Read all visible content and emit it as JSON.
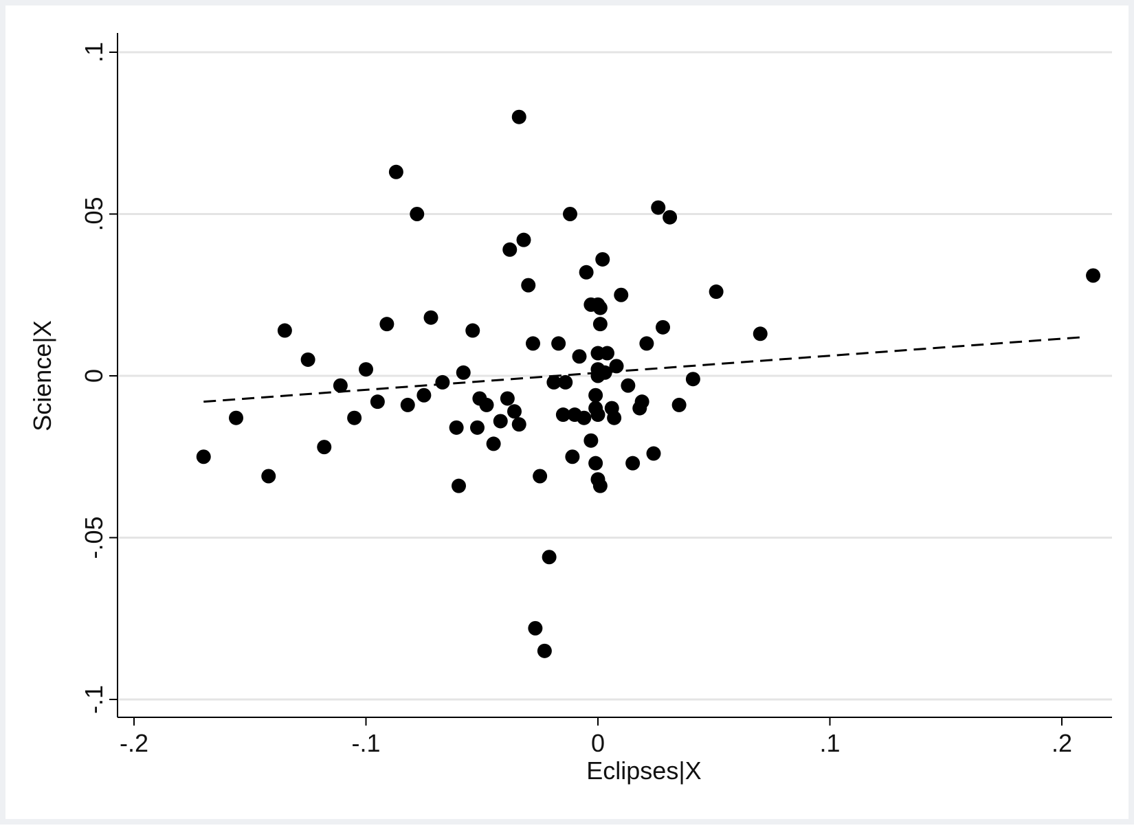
{
  "chart_data": {
    "type": "scatter",
    "title": "",
    "xlabel": "Eclipses|X",
    "ylabel": "Science|X",
    "xlim": [
      -0.208,
      0.22
    ],
    "ylim": [
      -0.105,
      0.105
    ],
    "xticks": [
      -0.2,
      -0.1,
      0,
      0.1,
      0.2
    ],
    "xtick_labels": [
      "-.2",
      "-.1",
      "0",
      ".1",
      ".2"
    ],
    "yticks": [
      -0.1,
      -0.05,
      0,
      0.05,
      0.1
    ],
    "ytick_labels": [
      "-.1",
      "-.05",
      "0",
      ".05",
      ".1"
    ],
    "grid": "horizontal",
    "legend": "none",
    "colors": {
      "points": "#000000",
      "fit_line": "#000000",
      "grid": "#e4e4e4",
      "axis": "#000000"
    },
    "points": [
      [
        -0.034,
        0.08
      ],
      [
        -0.087,
        0.063
      ],
      [
        -0.078,
        0.05
      ],
      [
        -0.012,
        0.05
      ],
      [
        0.026,
        0.052
      ],
      [
        0.031,
        0.049
      ],
      [
        -0.032,
        0.042
      ],
      [
        -0.038,
        0.039
      ],
      [
        0.002,
        0.036
      ],
      [
        -0.005,
        0.032
      ],
      [
        -0.03,
        0.028
      ],
      [
        0.051,
        0.026
      ],
      [
        0.01,
        0.025
      ],
      [
        0.2135,
        0.031
      ],
      [
        -0.003,
        0.022
      ],
      [
        0.0,
        0.022
      ],
      [
        0.001,
        0.021
      ],
      [
        -0.072,
        0.018
      ],
      [
        -0.091,
        0.016
      ],
      [
        0.001,
        0.016
      ],
      [
        -0.135,
        0.014
      ],
      [
        -0.054,
        0.014
      ],
      [
        0.028,
        0.015
      ],
      [
        0.07,
        0.013
      ],
      [
        -0.028,
        0.01
      ],
      [
        -0.017,
        0.01
      ],
      [
        0.021,
        0.01
      ],
      [
        -0.008,
        0.006
      ],
      [
        0.0,
        0.007
      ],
      [
        0.004,
        0.007
      ],
      [
        -0.125,
        0.005
      ],
      [
        0.008,
        0.003
      ],
      [
        -0.1,
        0.002
      ],
      [
        -0.058,
        0.001
      ],
      [
        0.0,
        0.002
      ],
      [
        0.003,
        0.001
      ],
      [
        0.0,
        0.0
      ],
      [
        0.041,
        -0.001
      ],
      [
        -0.111,
        -0.003
      ],
      [
        -0.067,
        -0.002
      ],
      [
        -0.019,
        -0.002
      ],
      [
        -0.014,
        -0.002
      ],
      [
        0.013,
        -0.003
      ],
      [
        -0.075,
        -0.006
      ],
      [
        -0.051,
        -0.007
      ],
      [
        -0.039,
        -0.007
      ],
      [
        -0.001,
        -0.006
      ],
      [
        0.019,
        -0.008
      ],
      [
        -0.095,
        -0.008
      ],
      [
        0.035,
        -0.009
      ],
      [
        -0.082,
        -0.009
      ],
      [
        -0.048,
        -0.009
      ],
      [
        -0.001,
        -0.01
      ],
      [
        0.006,
        -0.01
      ],
      [
        0.018,
        -0.01
      ],
      [
        -0.036,
        -0.011
      ],
      [
        -0.015,
        -0.012
      ],
      [
        -0.01,
        -0.012
      ],
      [
        0.0,
        -0.012
      ],
      [
        -0.006,
        -0.013
      ],
      [
        0.007,
        -0.013
      ],
      [
        -0.156,
        -0.013
      ],
      [
        -0.105,
        -0.013
      ],
      [
        -0.042,
        -0.014
      ],
      [
        -0.034,
        -0.015
      ],
      [
        -0.061,
        -0.016
      ],
      [
        -0.052,
        -0.016
      ],
      [
        -0.003,
        -0.02
      ],
      [
        -0.118,
        -0.022
      ],
      [
        -0.045,
        -0.021
      ],
      [
        0.024,
        -0.024
      ],
      [
        -0.17,
        -0.025
      ],
      [
        -0.011,
        -0.025
      ],
      [
        -0.001,
        -0.027
      ],
      [
        0.015,
        -0.027
      ],
      [
        -0.142,
        -0.031
      ],
      [
        -0.025,
        -0.031
      ],
      [
        0.0,
        -0.032
      ],
      [
        0.001,
        -0.034
      ],
      [
        -0.06,
        -0.034
      ],
      [
        -0.021,
        -0.056
      ],
      [
        -0.027,
        -0.078
      ],
      [
        -0.023,
        -0.085
      ]
    ],
    "fit_line": {
      "x": [
        -0.17,
        0.21
      ],
      "y": [
        -0.008,
        0.012
      ],
      "style": "dashed"
    }
  }
}
